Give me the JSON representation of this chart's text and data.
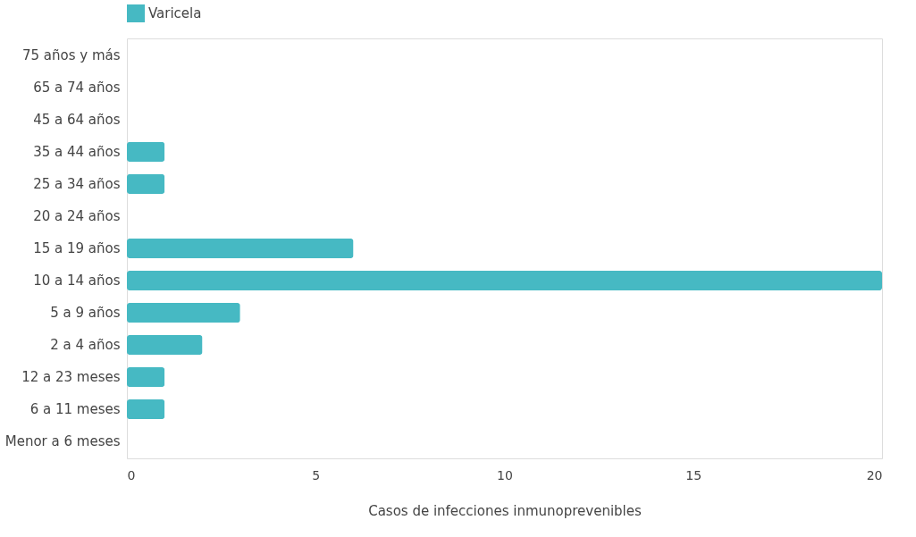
{
  "chart_data": {
    "type": "bar",
    "orientation": "horizontal",
    "categories": [
      "75 años y más",
      "65 a 74 años",
      "45 a 64 años",
      "35 a 44 años",
      "25 a 34 años",
      "20 a 24 años",
      "15 a 19 años",
      "10 a 14 años",
      "5 a 9 años",
      "2 a 4 años",
      "12 a 23 meses",
      "6 a 11 meses",
      "Menor a 6 meses"
    ],
    "series": [
      {
        "name": "Varicela",
        "color": "#46b9c3",
        "values": [
          0,
          0,
          0,
          1,
          1,
          0,
          6,
          20,
          3,
          2,
          1,
          1,
          0
        ]
      }
    ],
    "xlabel": "Casos de infecciones inmunoprevenibles",
    "xlim": [
      0,
      20
    ],
    "xticks": [
      0,
      5,
      10,
      15,
      20
    ],
    "grid": false,
    "legend": "top"
  }
}
